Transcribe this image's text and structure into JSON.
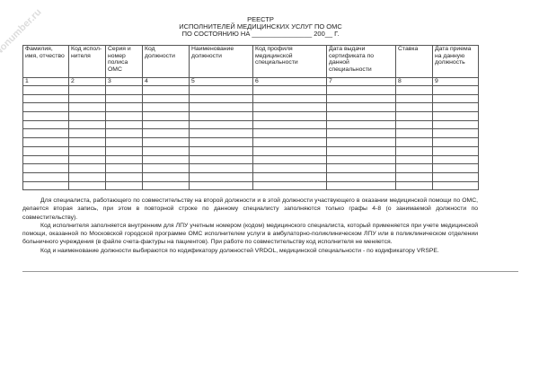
{
  "watermark": "Nonumber.ru",
  "title": {
    "line1": "РЕЕСТР",
    "line2": "ИСПОЛНИТЕЛЕЙ МЕДИЦИНСКИХ УСЛУГ ПО ОМС",
    "line3": "ПО СОСТОЯНИЮ НА ________________ 200__ Г."
  },
  "table": {
    "headers": [
      "Фамилия, имя, отчество",
      "Код испол-нителя",
      "Серия и номер полиса ОМС",
      "Код должности",
      "Наименование должности",
      "Код профиля медицинской специальности",
      "Дата выдачи сертификата по данной специальности",
      "Ставка",
      "Дата приема на данную должность"
    ],
    "numbers": [
      "1",
      "2",
      "3",
      "4",
      "5",
      "6",
      "7",
      "8",
      "9"
    ]
  },
  "notes": [
    "Для специалиста, работающего по совместительству на второй должности и в этой должности участвующего в оказании медицинской помощи по ОМС, делается вторая запись, при этом в повторной строке по данному специалисту заполняются только графы 4-8 (о занимаемой должности по совместительству).",
    "Код исполнителя заполняется внутренним для ЛПУ учетным номером (кодом) медицинского специалиста, который применяется при учете медицинской помощи, оказанной по Московской городской программе ОМС исполнителем услуги в амбулаторно-поликлиническом ЛПУ или в поликлиническом отделении больничного учреждения (в файле счета-фактуры на пациентов). При работе по совместительству код исполнителя не меняется.",
    "Код и наименование должности выбираются по кодификатору должностей VRDOL, медицинской специальности - по кодификатору VRSPE."
  ]
}
